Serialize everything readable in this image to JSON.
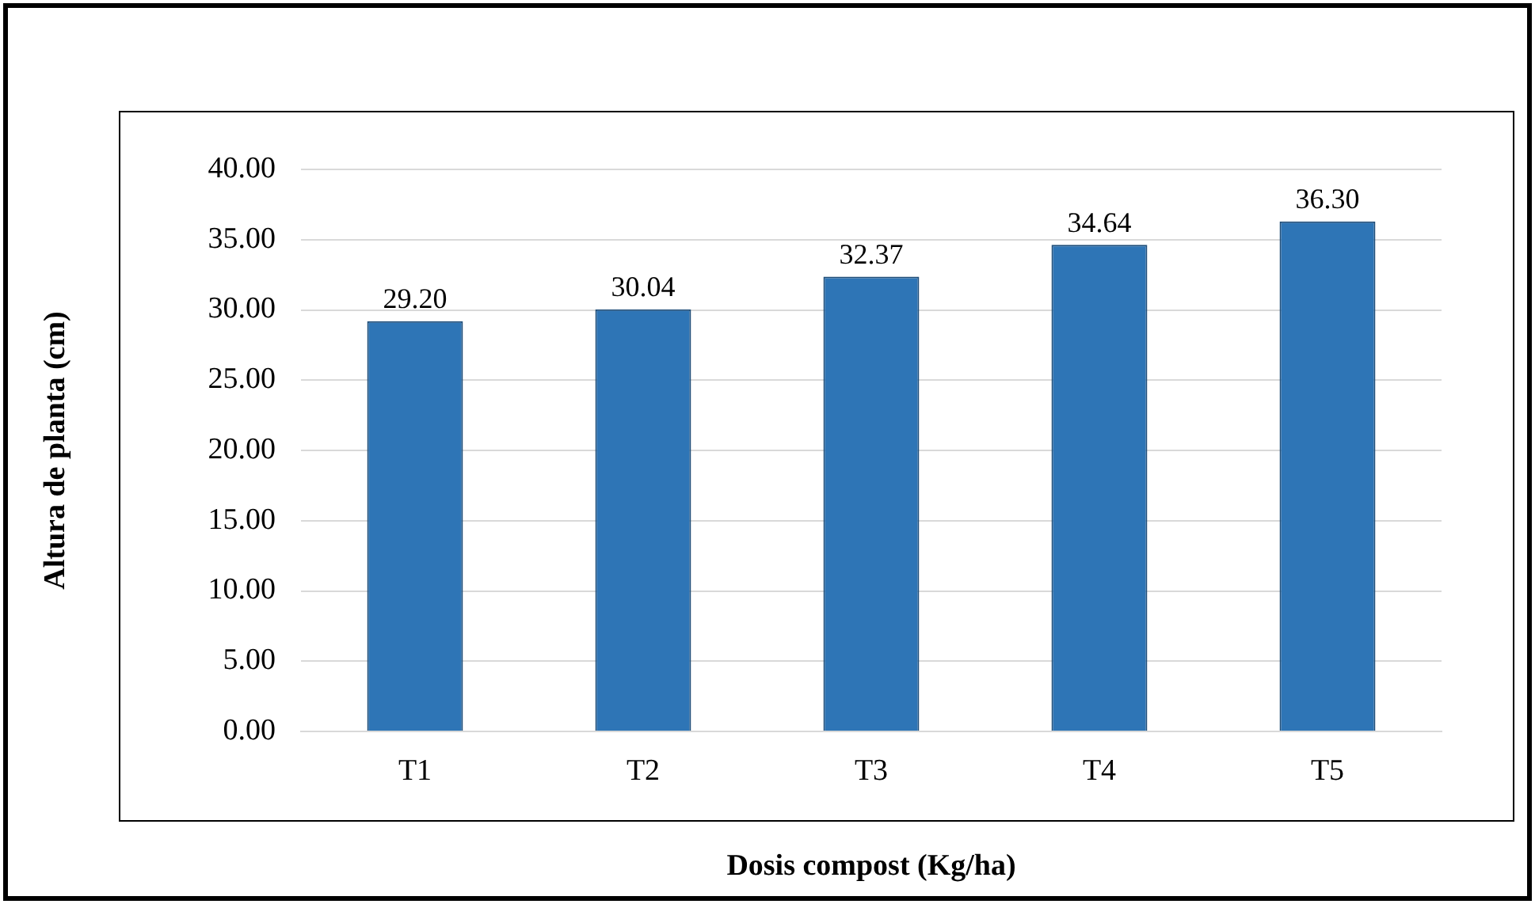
{
  "chart_data": {
    "type": "bar",
    "xlabel": "Dosis compost (Kg/ha)",
    "ylabel": "Altura de planta (cm)",
    "categories": [
      "T1",
      "T2",
      "T3",
      "T4",
      "T5"
    ],
    "values": [
      29.2,
      30.04,
      32.37,
      34.64,
      36.3
    ],
    "value_labels": [
      "29.20",
      "30.04",
      "32.37",
      "34.64",
      "36.30"
    ],
    "color": "#2e75b6",
    "ylim": [
      0,
      40
    ],
    "yticks": [
      {
        "value": 0,
        "label": "0.00"
      },
      {
        "value": 5,
        "label": "5.00"
      },
      {
        "value": 10,
        "label": "10.00"
      },
      {
        "value": 15,
        "label": "15.00"
      },
      {
        "value": 20,
        "label": "20.00"
      },
      {
        "value": 25,
        "label": "25.00"
      },
      {
        "value": 30,
        "label": "30.00"
      },
      {
        "value": 35,
        "label": "35.00"
      },
      {
        "value": 40,
        "label": "40.00"
      }
    ],
    "grid": "y",
    "legend": false
  }
}
